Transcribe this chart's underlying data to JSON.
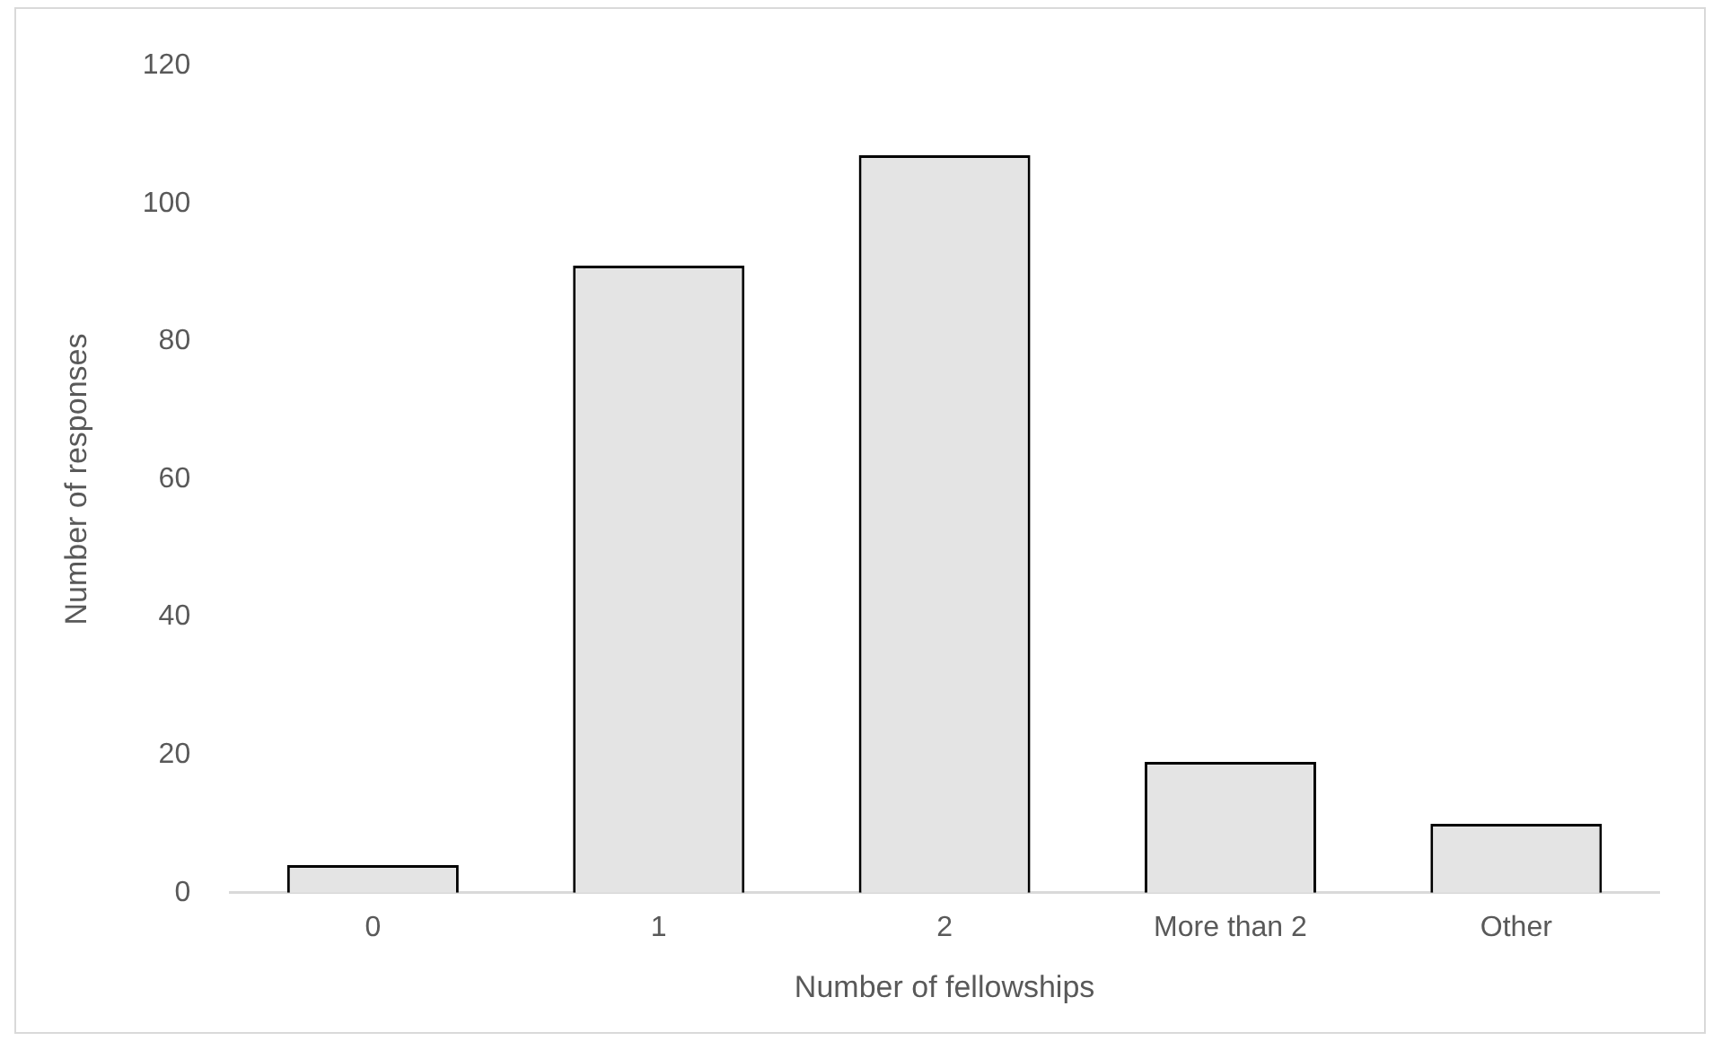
{
  "chart_data": {
    "type": "bar",
    "xlabel": "Number of fellowships",
    "ylabel": "Number of responses",
    "categories": [
      "0",
      "1",
      "2",
      "More than 2",
      "Other"
    ],
    "values": [
      4,
      91,
      107,
      19,
      10
    ],
    "color": "#e4e4e4",
    "ylim": [
      0,
      120
    ],
    "yticks": [
      0,
      20,
      40,
      60,
      80,
      100,
      120
    ],
    "grid": false
  }
}
